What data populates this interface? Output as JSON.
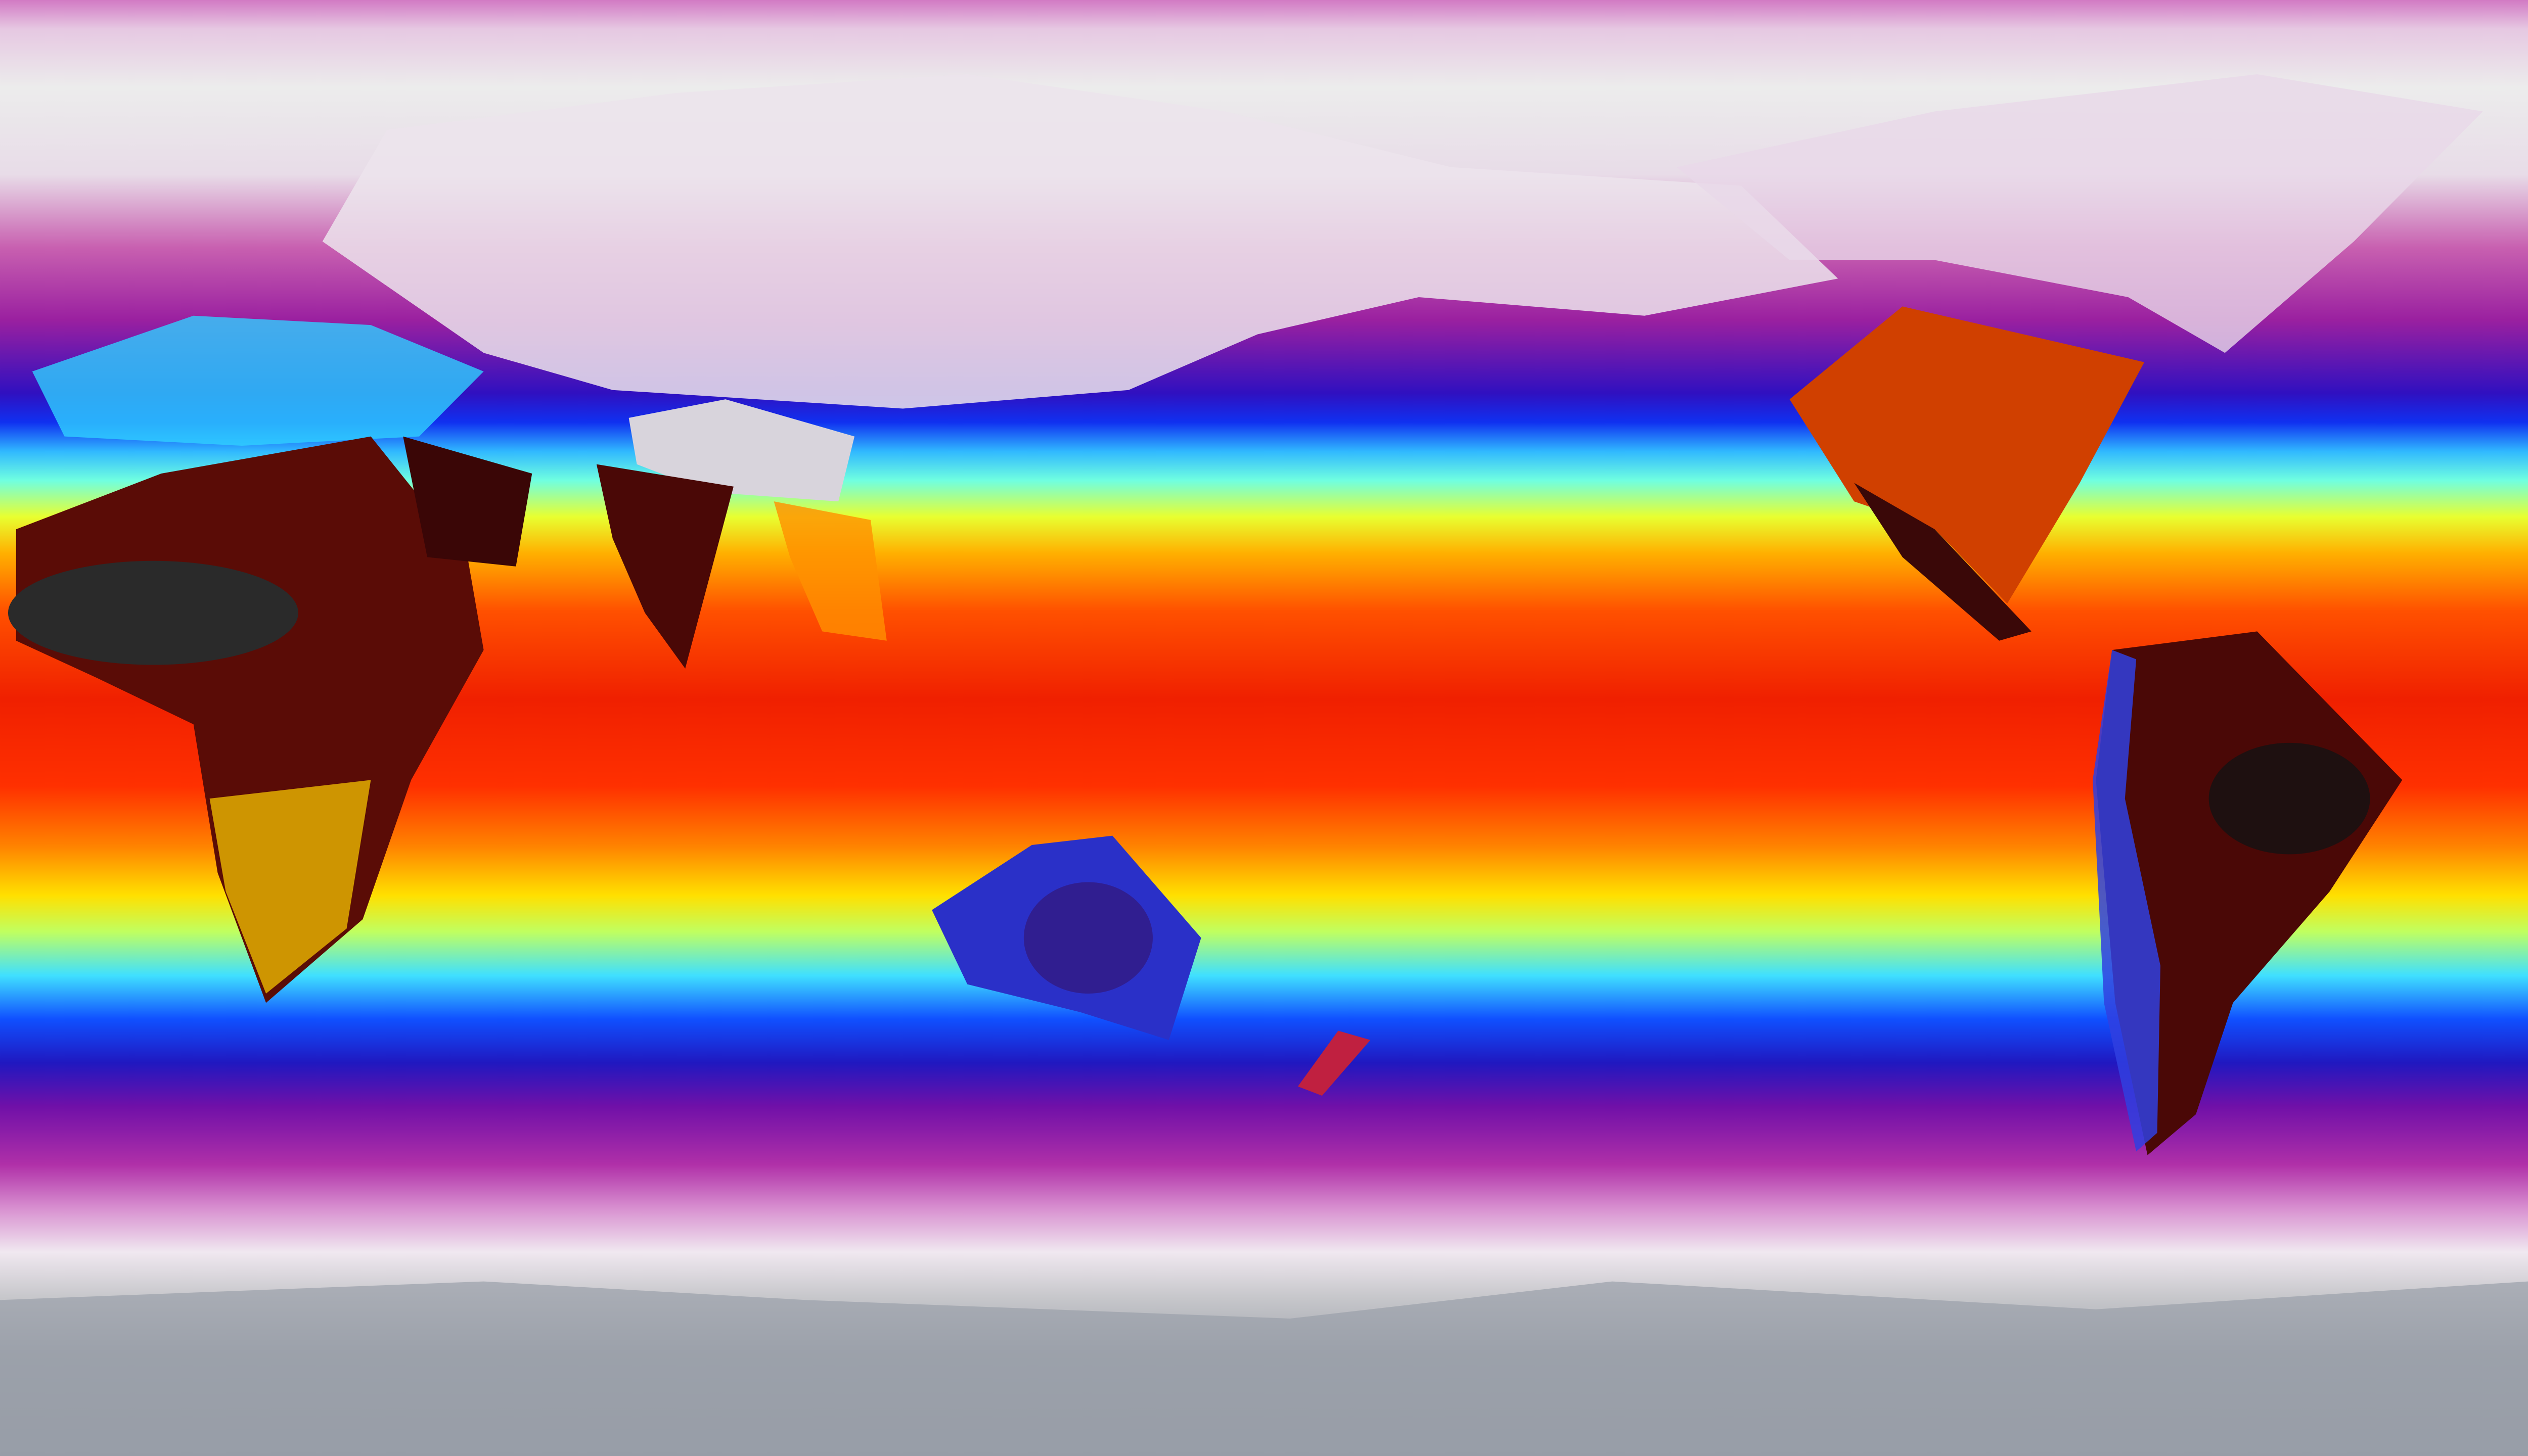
{
  "map": {
    "projection": "equirectangular",
    "colorscale": [
      "#9298a2",
      "#f0e8f0",
      "#b030a8",
      "#2018c0",
      "#1050ff",
      "#40e0ff",
      "#ffe000",
      "#ff8000",
      "#f02000",
      "#3a0a08",
      "#1a1a1a"
    ],
    "colors": {
      "polar": "#9298a2",
      "cold": "#b030a8",
      "cool": "#1050ff",
      "mild": "#40e0ff",
      "warm": "#ffe000",
      "hot": "#f02000",
      "hottest": "#1a1a1a"
    }
  }
}
